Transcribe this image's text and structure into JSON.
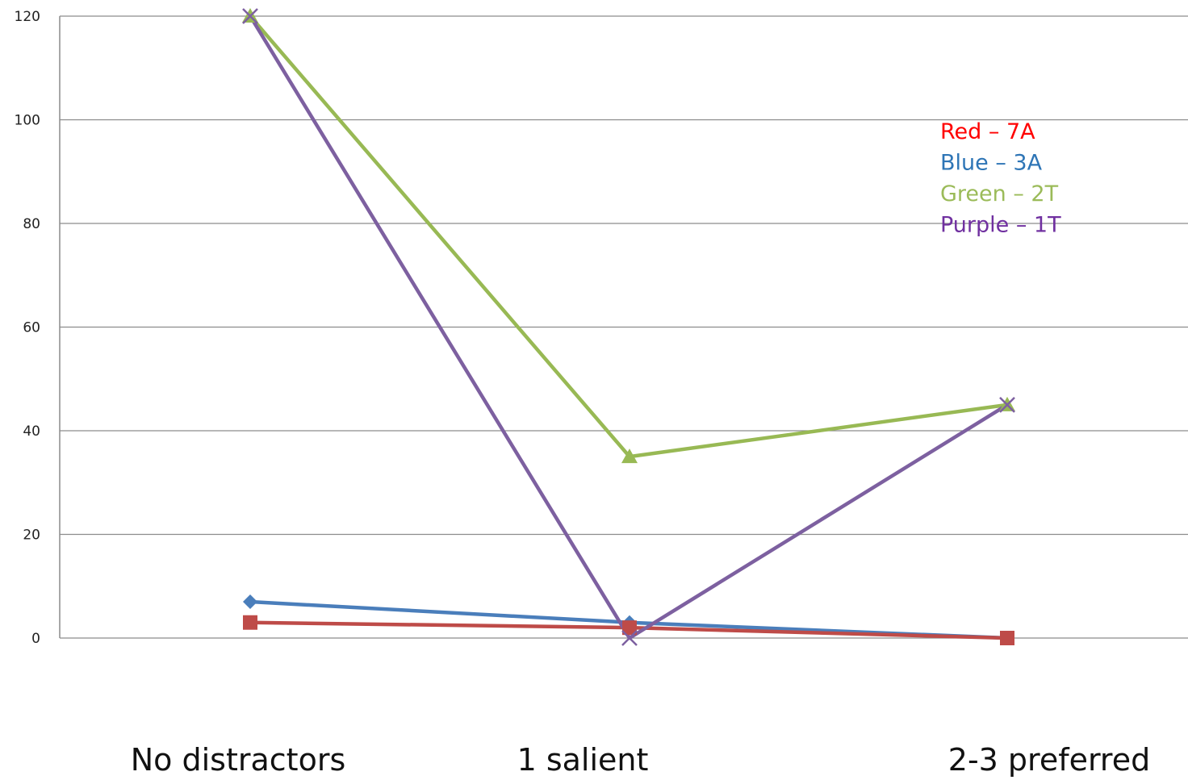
{
  "chart_data": {
    "type": "line",
    "categories": [
      "No distractors",
      "1 salient",
      "2-3 preferred"
    ],
    "ylim": [
      0,
      120
    ],
    "yticks": [
      0,
      20,
      40,
      60,
      80,
      100,
      120
    ],
    "grid": true,
    "series": [
      {
        "key": "blue",
        "marker": "diamond",
        "color": "#4A7EBB",
        "values": [
          7,
          3,
          0
        ]
      },
      {
        "key": "red",
        "marker": "square",
        "color": "#BE4B48",
        "values": [
          3,
          2,
          0
        ]
      },
      {
        "key": "green",
        "marker": "triangle",
        "color": "#98B954",
        "values": [
          120,
          35,
          45
        ]
      },
      {
        "key": "purple",
        "marker": "x",
        "color": "#7D60A0",
        "values": [
          120,
          0,
          45
        ]
      }
    ],
    "annotation_lines": [
      {
        "text": "Red – 7A",
        "color": "#FF0000"
      },
      {
        "text": "Blue – 3A",
        "color": "#2E75B6"
      },
      {
        "text": "Green – 2T",
        "color": "#9BBB59"
      },
      {
        "text": "Purple – 1T",
        "color": "#7030A0"
      }
    ]
  }
}
